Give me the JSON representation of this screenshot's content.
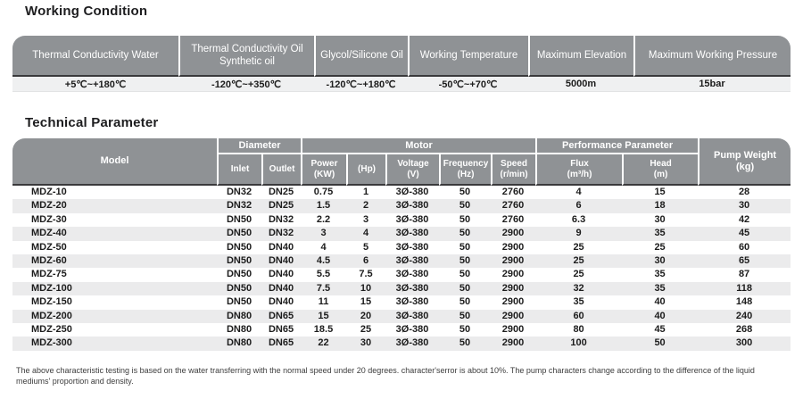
{
  "working_condition": {
    "title": "Working Condition",
    "columns": [
      "Thermal Conductivity Water",
      "Thermal Conductivity Oil\nSynthetic oil",
      "Glycol/Silicone Oil",
      "Working Temperature",
      "Maximum Elevation",
      "Maximum Working Pressure"
    ],
    "values": [
      "+5℃~+180℃",
      "-120℃~+350℃",
      "-120℃~+180℃",
      "-50℃~+70℃",
      "5000m",
      "15bar"
    ]
  },
  "technical": {
    "title": "Technical Parameter",
    "header": {
      "model": "Model",
      "diameter": "Diameter",
      "motor": "Motor",
      "performance": "Performance Parameter",
      "pump_weight": "Pump Weight\n(kg)",
      "sub": [
        "Inlet",
        "Outlet",
        "Power\n(KW)",
        "(Hp)",
        "Voltage\n(V)",
        "Frequency\n(Hz)",
        "Speed\n(r/min)",
        "Flux\n(m³/h)",
        "Head\n(m)"
      ]
    },
    "rows": [
      [
        "MDZ-10",
        "DN32",
        "DN25",
        "0.75",
        "1",
        "3Ø-380",
        "50",
        "2760",
        "4",
        "15",
        "28"
      ],
      [
        "MDZ-20",
        "DN32",
        "DN25",
        "1.5",
        "2",
        "3Ø-380",
        "50",
        "2760",
        "6",
        "18",
        "30"
      ],
      [
        "MDZ-30",
        "DN50",
        "DN32",
        "2.2",
        "3",
        "3Ø-380",
        "50",
        "2760",
        "6.3",
        "30",
        "42"
      ],
      [
        "MDZ-40",
        "DN50",
        "DN32",
        "3",
        "4",
        "3Ø-380",
        "50",
        "2900",
        "9",
        "35",
        "45"
      ],
      [
        "MDZ-50",
        "DN50",
        "DN40",
        "4",
        "5",
        "3Ø-380",
        "50",
        "2900",
        "25",
        "25",
        "60"
      ],
      [
        "MDZ-60",
        "DN50",
        "DN40",
        "4.5",
        "6",
        "3Ø-380",
        "50",
        "2900",
        "25",
        "30",
        "65"
      ],
      [
        "MDZ-75",
        "DN50",
        "DN40",
        "5.5",
        "7.5",
        "3Ø-380",
        "50",
        "2900",
        "25",
        "35",
        "87"
      ],
      [
        "MDZ-100",
        "DN50",
        "DN40",
        "7.5",
        "10",
        "3Ø-380",
        "50",
        "2900",
        "32",
        "35",
        "118"
      ],
      [
        "MDZ-150",
        "DN50",
        "DN40",
        "11",
        "15",
        "3Ø-380",
        "50",
        "2900",
        "35",
        "40",
        "148"
      ],
      [
        "MDZ-200",
        "DN80",
        "DN65",
        "15",
        "20",
        "3Ø-380",
        "50",
        "2900",
        "60",
        "40",
        "240"
      ],
      [
        "MDZ-250",
        "DN80",
        "DN65",
        "18.5",
        "25",
        "3Ø-380",
        "50",
        "2900",
        "80",
        "45",
        "268"
      ],
      [
        "MDZ-300",
        "DN80",
        "DN65",
        "22",
        "30",
        "3Ø-380",
        "50",
        "2900",
        "100",
        "50",
        "300"
      ]
    ]
  },
  "footnote": "The above characteristic testing is based on the water transferring with the normal speed under 20 degrees.  character'serror is about 10%. The pump characters change according to the difference of the liquid mediums'  proportion and density.",
  "colors": {
    "header_bg": "#8f9295",
    "dark_border": "#3a3a3c",
    "value_row_bg": "#eff0f1",
    "stripe": "#ebebec"
  }
}
